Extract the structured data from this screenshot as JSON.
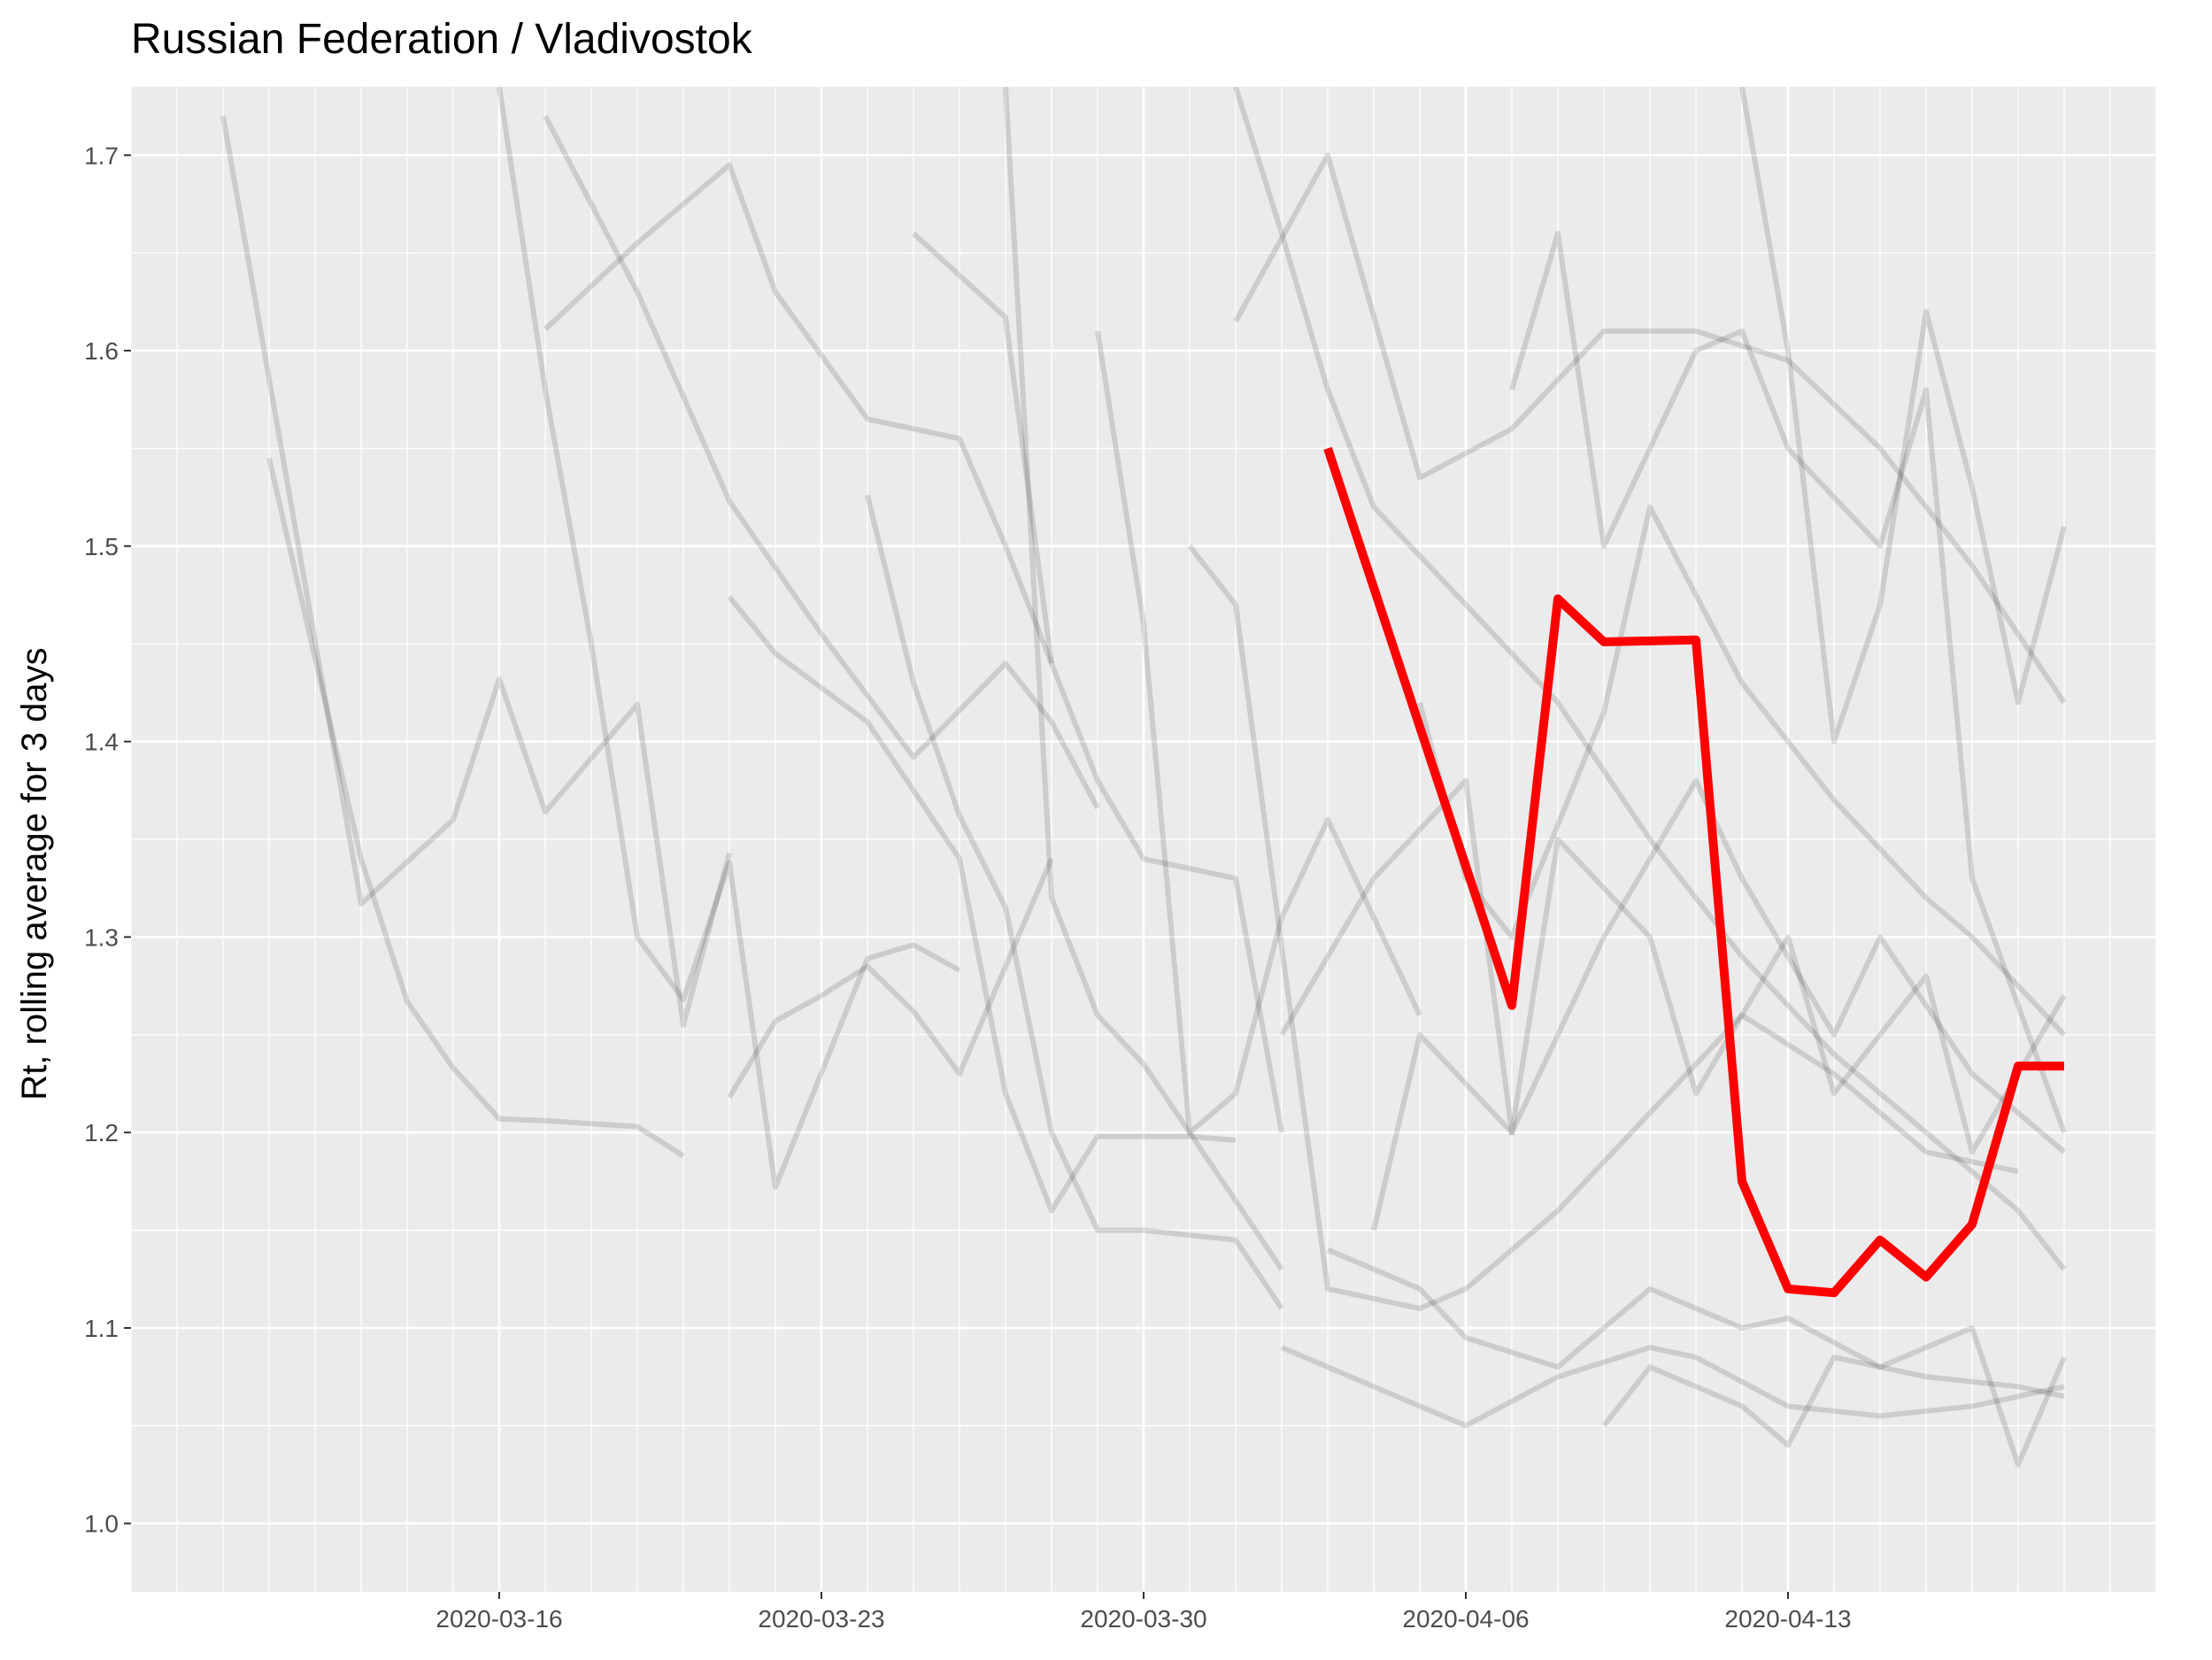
{
  "chart_data": {
    "type": "line",
    "title": "Russian Federation / Vladivostok",
    "xlabel": "",
    "ylabel": "Rt, rolling average for 3 days",
    "x_axis": {
      "type": "date",
      "range": [
        "2020-03-08",
        "2020-04-21"
      ],
      "ticks": [
        "2020-03-16",
        "2020-03-23",
        "2020-03-30",
        "2020-04-06",
        "2020-04-13"
      ]
    },
    "y_axis": {
      "range": [
        0.965,
        1.735
      ],
      "ticks": [
        "1.0",
        "1.1",
        "1.2",
        "1.3",
        "1.4",
        "1.5",
        "1.6",
        "1.7"
      ]
    },
    "grid": true,
    "colors": {
      "panel_background": "#ebebeb",
      "grid": "#ffffff",
      "highlight": "#ff0000",
      "background_series": "#000000"
    },
    "highlight_series": {
      "name": "",
      "x": [
        "2020-04-03",
        "2020-04-07",
        "2020-04-08",
        "2020-04-09",
        "2020-04-11",
        "2020-04-12",
        "2020-04-13",
        "2020-04-14",
        "2020-04-15",
        "2020-04-16",
        "2020-04-17",
        "2020-04-18",
        "2020-04-19"
      ],
      "y": [
        1.55,
        1.265,
        1.473,
        1.451,
        1.452,
        1.175,
        1.12,
        1.118,
        1.145,
        1.126,
        1.153,
        1.234,
        1.234
      ]
    },
    "background_series": [
      {
        "x": [
          "2020-03-10",
          "2020-03-13",
          "2020-03-15",
          "2020-03-16",
          "2020-03-17",
          "2020-03-19",
          "2020-03-20",
          "2020-03-21"
        ],
        "y": [
          1.72,
          1.317,
          1.36,
          1.432,
          1.364,
          1.419,
          1.255,
          1.343
        ]
      },
      {
        "x": [
          "2020-03-11",
          "2020-03-13",
          "2020-03-14",
          "2020-03-15",
          "2020-03-16",
          "2020-03-17",
          "2020-03-19",
          "2020-03-20"
        ],
        "y": [
          1.545,
          1.34,
          1.267,
          1.233,
          1.207,
          1.206,
          1.203,
          1.188
        ]
      },
      {
        "x": [
          "2020-03-17",
          "2020-03-19",
          "2020-03-21",
          "2020-03-22",
          "2020-03-24",
          "2020-03-26",
          "2020-03-27",
          "2020-03-28"
        ],
        "y": [
          1.611,
          1.655,
          1.695,
          1.63,
          1.565,
          1.555,
          1.5,
          1.44
        ]
      },
      {
        "x": [
          "2020-03-16",
          "2020-03-17",
          "2020-03-18",
          "2020-03-19",
          "2020-03-20",
          "2020-03-21",
          "2020-03-22",
          "2020-03-24",
          "2020-03-25",
          "2020-03-26"
        ],
        "y": [
          1.735,
          1.58,
          1.45,
          1.3,
          1.268,
          1.338,
          1.172,
          1.289,
          1.296,
          1.283
        ]
      },
      {
        "x": [
          "2020-03-17",
          "2020-03-19",
          "2020-03-21",
          "2020-03-23",
          "2020-03-25",
          "2020-03-27",
          "2020-03-28",
          "2020-03-29"
        ],
        "y": [
          1.72,
          1.63,
          1.523,
          1.455,
          1.392,
          1.44,
          1.41,
          1.366
        ]
      },
      {
        "x": [
          "2020-03-21",
          "2020-03-22",
          "2020-03-23",
          "2020-03-24",
          "2020-03-25",
          "2020-03-26",
          "2020-03-27",
          "2020-03-28"
        ],
        "y": [
          1.218,
          1.257,
          1.27,
          1.285,
          1.262,
          1.23,
          1.285,
          1.34
        ]
      },
      {
        "x": [
          "2020-03-21",
          "2020-03-22",
          "2020-03-24",
          "2020-03-25",
          "2020-03-26",
          "2020-03-27",
          "2020-03-28",
          "2020-03-29",
          "2020-03-31",
          "2020-04-01"
        ],
        "y": [
          1.474,
          1.445,
          1.41,
          1.375,
          1.34,
          1.22,
          1.16,
          1.198,
          1.198,
          1.196
        ]
      },
      {
        "x": [
          "2020-03-24",
          "2020-03-25",
          "2020-03-26",
          "2020-03-27",
          "2020-03-28",
          "2020-03-29",
          "2020-03-30",
          "2020-04-01",
          "2020-04-02"
        ],
        "y": [
          1.526,
          1.43,
          1.362,
          1.315,
          1.2,
          1.15,
          1.15,
          1.145,
          1.11
        ]
      },
      {
        "x": [
          "2020-03-25",
          "2020-03-27",
          "2020-03-28",
          "2020-03-29",
          "2020-03-30",
          "2020-04-01",
          "2020-04-02"
        ],
        "y": [
          1.66,
          1.617,
          1.44,
          1.38,
          1.34,
          1.33,
          1.2
        ]
      },
      {
        "x": [
          "2020-03-27",
          "2020-03-28",
          "2020-03-29",
          "2020-03-30",
          "2020-03-31",
          "2020-04-02"
        ],
        "y": [
          1.735,
          1.32,
          1.26,
          1.235,
          1.2,
          1.13
        ]
      },
      {
        "x": [
          "2020-03-29",
          "2020-03-30",
          "2020-03-31",
          "2020-04-01",
          "2020-04-02",
          "2020-04-03",
          "2020-04-05"
        ],
        "y": [
          1.61,
          1.46,
          1.2,
          1.22,
          1.31,
          1.36,
          1.26
        ]
      },
      {
        "x": [
          "2020-04-01",
          "2020-04-03",
          "2020-04-05",
          "2020-04-07",
          "2020-04-09",
          "2020-04-11",
          "2020-04-13",
          "2020-04-15",
          "2020-04-17",
          "2020-04-19"
        ],
        "y": [
          1.615,
          1.7,
          1.535,
          1.56,
          1.61,
          1.61,
          1.595,
          1.55,
          1.49,
          1.42
        ]
      },
      {
        "x": [
          "2020-04-02",
          "2020-04-04",
          "2020-04-05",
          "2020-04-06",
          "2020-04-08",
          "2020-04-10",
          "2020-04-11",
          "2020-04-13",
          "2020-04-15",
          "2020-04-17",
          "2020-04-19"
        ],
        "y": [
          1.09,
          1.07,
          1.06,
          1.05,
          1.075,
          1.09,
          1.085,
          1.06,
          1.055,
          1.06,
          1.07
        ]
      },
      {
        "x": [
          "2020-04-03",
          "2020-04-05",
          "2020-04-06",
          "2020-04-08",
          "2020-04-10",
          "2020-04-12",
          "2020-04-13",
          "2020-04-15",
          "2020-04-17",
          "2020-04-18",
          "2020-04-19"
        ],
        "y": [
          1.14,
          1.12,
          1.095,
          1.08,
          1.12,
          1.1,
          1.105,
          1.08,
          1.1,
          1.03,
          1.085
        ]
      },
      {
        "x": [
          "2020-04-05",
          "2020-04-06",
          "2020-04-07",
          "2020-04-09",
          "2020-04-10",
          "2020-04-12",
          "2020-04-14",
          "2020-04-16",
          "2020-04-17",
          "2020-04-19"
        ],
        "y": [
          1.42,
          1.33,
          1.3,
          1.415,
          1.52,
          1.43,
          1.37,
          1.32,
          1.3,
          1.25
        ]
      },
      {
        "x": [
          "2020-04-07",
          "2020-04-08",
          "2020-04-09",
          "2020-04-11",
          "2020-04-12",
          "2020-04-13",
          "2020-04-15",
          "2020-04-16",
          "2020-04-17",
          "2020-04-19"
        ],
        "y": [
          1.58,
          1.66,
          1.5,
          1.6,
          1.61,
          1.55,
          1.5,
          1.58,
          1.33,
          1.2
        ]
      },
      {
        "x": [
          "2020-04-09",
          "2020-04-10",
          "2020-04-12",
          "2020-04-13",
          "2020-04-14",
          "2020-04-16",
          "2020-04-18",
          "2020-04-19"
        ],
        "y": [
          1.05,
          1.08,
          1.06,
          1.04,
          1.085,
          1.075,
          1.07,
          1.065
        ]
      },
      {
        "x": [
          "2020-04-12",
          "2020-04-13",
          "2020-04-14",
          "2020-04-15",
          "2020-04-16",
          "2020-04-17",
          "2020-04-18",
          "2020-04-19"
        ],
        "y": [
          1.735,
          1.6,
          1.4,
          1.47,
          1.62,
          1.53,
          1.42,
          1.51
        ]
      },
      {
        "x": [
          "2020-03-31",
          "2020-04-01",
          "2020-04-03",
          "2020-04-05",
          "2020-04-06",
          "2020-04-08",
          "2020-04-10",
          "2020-04-12",
          "2020-04-14",
          "2020-04-16",
          "2020-04-18"
        ],
        "y": [
          1.5,
          1.47,
          1.12,
          1.11,
          1.12,
          1.16,
          1.21,
          1.26,
          1.23,
          1.19,
          1.18
        ]
      },
      {
        "x": [
          "2020-04-04",
          "2020-04-05",
          "2020-04-07",
          "2020-04-08",
          "2020-04-10",
          "2020-04-11",
          "2020-04-13",
          "2020-04-14",
          "2020-04-16",
          "2020-04-17",
          "2020-04-19"
        ],
        "y": [
          1.15,
          1.25,
          1.2,
          1.35,
          1.3,
          1.22,
          1.3,
          1.22,
          1.28,
          1.19,
          1.27
        ]
      },
      {
        "x": [
          "2020-04-02",
          "2020-04-04",
          "2020-04-06",
          "2020-04-07",
          "2020-04-09",
          "2020-04-11",
          "2020-04-12",
          "2020-04-14",
          "2020-04-15",
          "2020-04-17",
          "2020-04-19"
        ],
        "y": [
          1.25,
          1.33,
          1.38,
          1.2,
          1.3,
          1.38,
          1.33,
          1.25,
          1.3,
          1.23,
          1.19
        ]
      },
      {
        "x": [
          "2020-04-01",
          "2020-04-02",
          "2020-04-03",
          "2020-04-04",
          "2020-04-06",
          "2020-04-08",
          "2020-04-10",
          "2020-04-12",
          "2020-04-14",
          "2020-04-16",
          "2020-04-18",
          "2020-04-19"
        ],
        "y": [
          1.735,
          1.66,
          1.58,
          1.52,
          1.47,
          1.42,
          1.35,
          1.29,
          1.24,
          1.2,
          1.16,
          1.13
        ]
      }
    ]
  }
}
